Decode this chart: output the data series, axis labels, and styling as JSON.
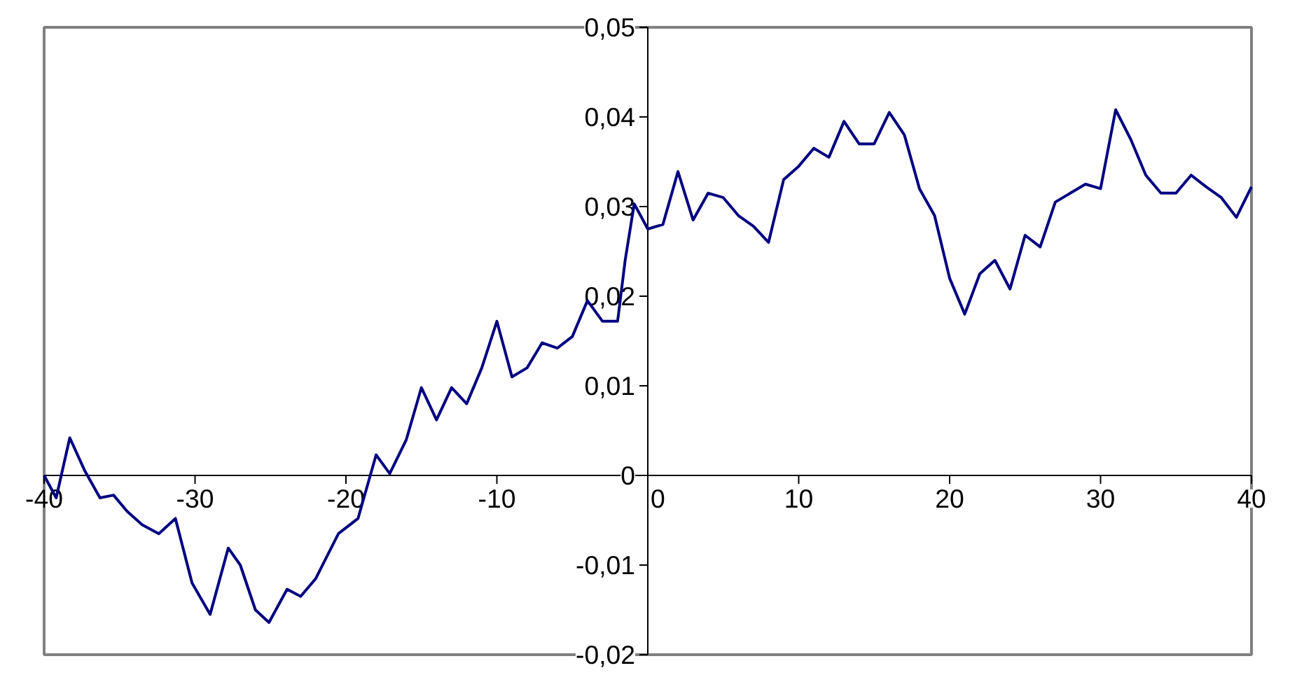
{
  "chart_data": {
    "type": "line",
    "x": [
      -40,
      -39.2,
      -38.3,
      -37.3,
      -36.3,
      -35.4,
      -34.5,
      -33.5,
      -32.4,
      -31.3,
      -30.2,
      -29,
      -27.8,
      -27,
      -26,
      -25.1,
      -23.9,
      -23,
      -22,
      -20.5,
      -19.2,
      -18,
      -17.1,
      -16,
      -15,
      -14,
      -13,
      -12,
      -11,
      -10,
      -9,
      -8,
      -7,
      -6,
      -5,
      -4,
      -3,
      -2,
      -1.5,
      -0.9,
      0,
      1,
      2,
      3,
      4,
      5,
      6,
      7,
      8,
      9,
      10,
      11,
      12,
      13,
      14,
      15,
      16,
      17,
      18,
      19,
      20,
      21,
      22,
      23,
      24,
      25,
      26,
      27,
      28,
      29,
      30,
      31,
      32,
      33,
      34,
      35,
      36,
      37,
      38,
      39,
      40
    ],
    "series": [
      {
        "color": "#000080",
        "values": [
          0,
          -0.0025,
          0.0042,
          0.0005,
          -0.0025,
          -0.0022,
          -0.004,
          -0.0055,
          -0.0065,
          -0.0048,
          -0.012,
          -0.0155,
          -0.0081,
          -0.01,
          -0.015,
          -0.0164,
          -0.0127,
          -0.0135,
          -0.0115,
          -0.0065,
          -0.0048,
          0.0023,
          0.0002,
          0.004,
          0.0098,
          0.0062,
          0.0098,
          0.008,
          0.012,
          0.0172,
          0.011,
          0.012,
          0.0148,
          0.0142,
          0.0155,
          0.0195,
          0.0172,
          0.0172,
          0.024,
          0.0303,
          0.0275,
          0.028,
          0.0339,
          0.0285,
          0.0315,
          0.031,
          0.029,
          0.0278,
          0.026,
          0.033,
          0.0345,
          0.0365,
          0.0355,
          0.0395,
          0.037,
          0.037,
          0.0405,
          0.038,
          0.032,
          0.029,
          0.022,
          0.018,
          0.0225,
          0.024,
          0.0208,
          0.0268,
          0.0255,
          0.0305,
          0.0315,
          0.0325,
          0.032,
          0.0408,
          0.0375,
          0.0335,
          0.0315,
          0.0315,
          0.0335,
          0.0322,
          0.031,
          0.0288,
          0.0322
        ]
      }
    ],
    "xlim": [
      -40,
      40
    ],
    "xticks": [
      -40,
      -30,
      -20,
      -10,
      0,
      10,
      20,
      30,
      40
    ],
    "ylim": [
      -0.02,
      0.05
    ],
    "yticks": [
      {
        "value": -0.02,
        "label": "-0,02"
      },
      {
        "value": -0.01,
        "label": "-0,01"
      },
      0,
      {
        "value": 0.01,
        "label": "0,01"
      },
      {
        "value": 0.02,
        "label": "0,02"
      },
      {
        "value": 0.03,
        "label": "0,03"
      },
      {
        "value": 0.04,
        "label": "0,04"
      },
      {
        "value": 0.05,
        "label": "0,05"
      }
    ],
    "grid": false
  }
}
